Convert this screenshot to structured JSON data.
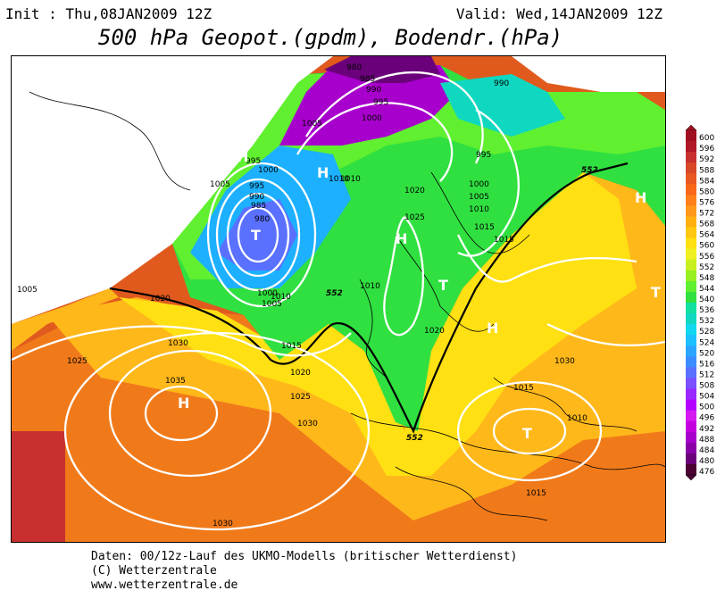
{
  "header": {
    "init": "Init : Thu,08JAN2009 12Z",
    "valid": "Valid: Wed,14JAN2009 12Z",
    "title": "500 hPa Geopot.(gpdm), Bodendr.(hPa)"
  },
  "footer": {
    "line1": "Daten: 00/12z-Lauf des UKMO-Modells (britischer Wetterdienst)",
    "line2": "(C) Wetterzentrale",
    "line3": "www.wetterzentrale.de"
  },
  "colors": {
    "scale": [
      "#4a0032",
      "#6a007a",
      "#8a00a8",
      "#a800cc",
      "#c400e0",
      "#d418f0",
      "#b400ff",
      "#9a28ff",
      "#7a50ff",
      "#5a70ff",
      "#3c8cff",
      "#2aa6ff",
      "#1cc0ff",
      "#10d8f0",
      "#10d8c0",
      "#10e0a0",
      "#18e070",
      "#30e040",
      "#60f030",
      "#98f020",
      "#c8f020",
      "#f0f020",
      "#ffe010",
      "#ffc810",
      "#ffb010",
      "#ff9818",
      "#ff8018",
      "#f86818",
      "#e85820",
      "#d84828",
      "#c83030",
      "#b01828",
      "#a01020"
    ]
  },
  "scale_labels": [
    "600",
    "596",
    "592",
    "588",
    "584",
    "580",
    "576",
    "572",
    "568",
    "564",
    "560",
    "556",
    "552",
    "548",
    "544",
    "540",
    "536",
    "532",
    "528",
    "524",
    "520",
    "516",
    "512",
    "508",
    "504",
    "500",
    "496",
    "492",
    "488",
    "484",
    "480",
    "476"
  ],
  "isobar_labels": [
    "980",
    "985",
    "990",
    "995",
    "1000",
    "1005",
    "990",
    "995",
    "1000",
    "1005",
    "1010",
    "1020",
    "995",
    "1000",
    "1005",
    "1010",
    "1015",
    "1025",
    "1005",
    "1020",
    "1030",
    "1025",
    "1035",
    "1030",
    "1030",
    "1010",
    "1015",
    "1020",
    "1025",
    "1030",
    "1020",
    "1015",
    "1010",
    "1015",
    "1010",
    "1000",
    "985",
    "990",
    "980",
    "995",
    "1005",
    "1010",
    "1015"
  ],
  "pressure_systems": [
    "T",
    "H",
    "H",
    "H",
    "T",
    "H",
    "T",
    "H",
    "H",
    "T"
  ],
  "contour_552_labels": [
    "552",
    "552",
    "552"
  ]
}
